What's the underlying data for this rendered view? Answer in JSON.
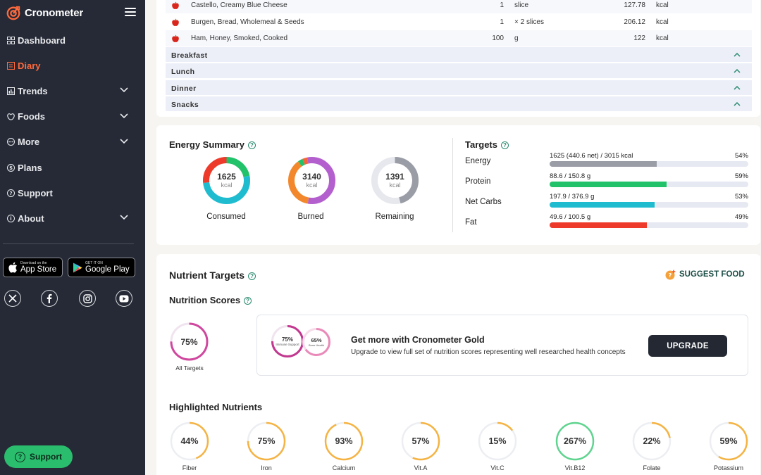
{
  "app": {
    "name": "Cronometer"
  },
  "sidebar": {
    "items": [
      {
        "label": "Dashboard",
        "icon": "dashboard-icon",
        "active": false,
        "expandable": false
      },
      {
        "label": "Diary",
        "icon": "diary-icon",
        "active": true,
        "expandable": false
      },
      {
        "label": "Trends",
        "icon": "trends-icon",
        "active": false,
        "expandable": true
      },
      {
        "label": "Foods",
        "icon": "foods-icon",
        "active": false,
        "expandable": true
      },
      {
        "label": "More",
        "icon": "more-icon",
        "active": false,
        "expandable": true
      },
      {
        "label": "Plans",
        "icon": "plans-icon",
        "active": false,
        "expandable": false
      },
      {
        "label": "Support",
        "icon": "support-icon",
        "active": false,
        "expandable": false
      },
      {
        "label": "About",
        "icon": "about-icon",
        "active": false,
        "expandable": true
      }
    ],
    "app_store": {
      "sub": "Download on the",
      "main": "App Store"
    },
    "google_play": {
      "sub": "GET IT ON",
      "main": "Google Play"
    },
    "support_button": "Support"
  },
  "diary": {
    "foods": [
      {
        "name": "Castello, Creamy Blue Cheese",
        "amount": "1",
        "unit": "slice",
        "calories": "127.78",
        "cal_unit": "kcal"
      },
      {
        "name": "Burgen, Bread, Wholemeal & Seeds",
        "amount": "1",
        "unit": "× 2 slices",
        "calories": "206.12",
        "cal_unit": "kcal"
      },
      {
        "name": "Ham, Honey, Smoked, Cooked",
        "amount": "100",
        "unit": "g",
        "calories": "122",
        "cal_unit": "kcal"
      }
    ],
    "meals": [
      "Breakfast",
      "Lunch",
      "Dinner",
      "Snacks"
    ]
  },
  "energy_summary": {
    "title": "Energy Summary",
    "consumed": {
      "value": "1625",
      "unit": "kcal",
      "label": "Consumed"
    },
    "burned": {
      "value": "3140",
      "unit": "kcal",
      "label": "Burned"
    },
    "remaining": {
      "value": "1391",
      "unit": "kcal",
      "label": "Remaining"
    }
  },
  "targets": {
    "title": "Targets",
    "rows": [
      {
        "name": "Energy",
        "value": "1625 (440.6 net) / 3015 kcal",
        "pct": "54%",
        "fraction": 0.54,
        "color": "#9a9ca6"
      },
      {
        "name": "Protein",
        "value": "88.6 / 150.8 g",
        "pct": "59%",
        "fraction": 0.59,
        "color": "#22c26a"
      },
      {
        "name": "Net Carbs",
        "value": "197.9 / 376.9 g",
        "pct": "53%",
        "fraction": 0.53,
        "color": "#1fbcd0"
      },
      {
        "name": "Fat",
        "value": "49.6 / 100.5 g",
        "pct": "49%",
        "fraction": 0.49,
        "color": "#ee3a2a"
      }
    ]
  },
  "nutrient_targets": {
    "title": "Nutrient Targets",
    "suggest_food": "SUGGEST FOOD",
    "scores_title": "Nutrition Scores",
    "all_targets": {
      "value": "75%",
      "label": "All Targets",
      "fraction": 0.75
    },
    "gold": {
      "immune": {
        "value": "75%",
        "label": "Immune Support"
      },
      "bone": {
        "value": "65%",
        "label": "Bone Health"
      },
      "title": "Get more with Cronometer Gold",
      "subtitle": "Upgrade to view full set of nutrition scores representing well researched health concepts",
      "button": "UPGRADE"
    },
    "highlighted_title": "Highlighted Nutrients",
    "highlighted": [
      {
        "name": "Fiber",
        "value": "44%",
        "fraction": 0.44,
        "color": "#f5b342"
      },
      {
        "name": "Iron",
        "value": "75%",
        "fraction": 0.75,
        "color": "#f5b342"
      },
      {
        "name": "Calcium",
        "value": "93%",
        "fraction": 0.93,
        "color": "#f5b342"
      },
      {
        "name": "Vit.A",
        "value": "57%",
        "fraction": 0.57,
        "color": "#f5b342"
      },
      {
        "name": "Vit.C",
        "value": "15%",
        "fraction": 0.15,
        "color": "#f5b342"
      },
      {
        "name": "Vit.B12",
        "value": "267%",
        "fraction": 1.0,
        "color": "#5fd48f"
      },
      {
        "name": "Folate",
        "value": "22%",
        "fraction": 0.22,
        "color": "#f5b342"
      },
      {
        "name": "Potassium",
        "value": "59%",
        "fraction": 0.59,
        "color": "#f5b342"
      }
    ]
  }
}
